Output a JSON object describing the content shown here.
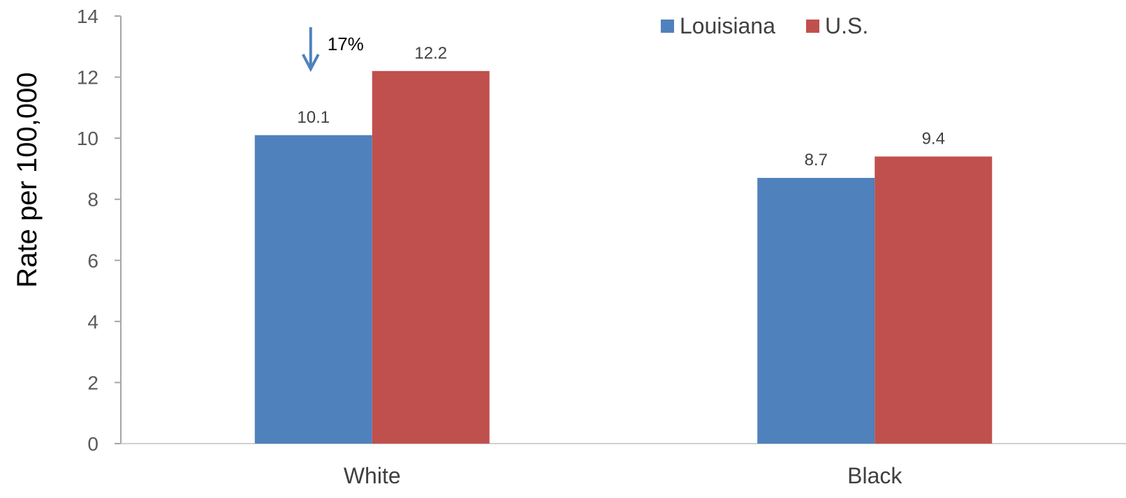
{
  "chart_data": {
    "type": "bar",
    "categories": [
      "White",
      "Black"
    ],
    "series": [
      {
        "name": "Louisiana",
        "values": [
          10.1,
          8.7
        ],
        "color": "#4F81BD"
      },
      {
        "name": "U.S.",
        "values": [
          12.2,
          9.4
        ],
        "color": "#C0504D"
      }
    ],
    "data_labels": [
      [
        "10.1",
        "8.7"
      ],
      [
        "12.2",
        "9.4"
      ]
    ],
    "title": "",
    "xlabel": "",
    "ylabel": "Rate per 100,000",
    "ylim": [
      0,
      14
    ],
    "yticks": [
      0,
      2,
      4,
      6,
      8,
      10,
      12,
      14
    ],
    "grid": false,
    "legend_position": "top-right",
    "annotation": {
      "text": "17%",
      "arrow": "down",
      "arrow_color": "#4F81BD",
      "category": "White"
    }
  }
}
